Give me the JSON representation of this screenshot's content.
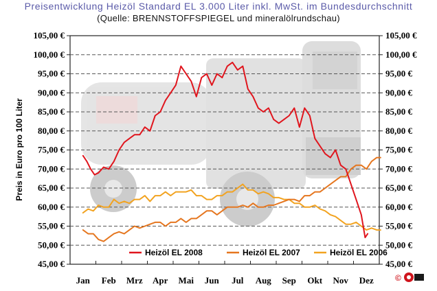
{
  "chart_data": {
    "type": "line",
    "title": "Preisentwicklung Heizöl Standard EL 3.000 Liter inkl. MwSt. im Bundesdurchschnitt",
    "subtitle": "(Quelle: BRENNSTOFFSPIEGEL und mineralölrundschau)",
    "ylabel": "Preis in Euro pro 100 Liter",
    "xlabel": "",
    "ylim": [
      45,
      105
    ],
    "yticks": [
      "45,00 €",
      "50,00 €",
      "55,00 €",
      "60,00 €",
      "65,00 €",
      "70,00 €",
      "75,00 €",
      "80,00 €",
      "85,00 €",
      "90,00 €",
      "95,00 €",
      "100,00 €",
      "105,00 €"
    ],
    "categories": [
      "Jan",
      "Feb",
      "Mrz",
      "Apr",
      "Mai",
      "Jun",
      "Jul",
      "Aug",
      "Sep",
      "Okt",
      "Nov",
      "Dez"
    ],
    "grid": true,
    "legend_position": "bottom",
    "series": [
      {
        "name": "Heizöl EL 2008",
        "color": "#e0151d",
        "x": [
          0,
          0.15,
          0.3,
          0.45,
          0.6,
          0.8,
          1.0,
          1.2,
          1.4,
          1.6,
          1.8,
          2.0,
          2.2,
          2.4,
          2.6,
          2.8,
          3.0,
          3.2,
          3.4,
          3.6,
          3.8,
          4.0,
          4.2,
          4.4,
          4.6,
          4.8,
          5.0,
          5.2,
          5.4,
          5.6,
          5.8,
          6.0,
          6.2,
          6.4,
          6.6,
          6.8,
          7.0,
          7.2,
          7.4,
          7.6,
          7.8,
          8.0,
          8.2,
          8.4,
          8.6,
          8.8,
          9.0,
          9.2,
          9.4,
          9.6,
          9.8,
          10.0,
          10.2,
          10.4,
          10.6,
          10.8,
          10.95,
          11.05
        ],
        "values": [
          73.5,
          72,
          70,
          68.5,
          69,
          70.5,
          70,
          72,
          75,
          77,
          78,
          79,
          79,
          81,
          80,
          84,
          85,
          88,
          90,
          92,
          97,
          95,
          93,
          89,
          94,
          95,
          92,
          95,
          94,
          97,
          98,
          96,
          97,
          91,
          89,
          86,
          85,
          86,
          83,
          82,
          83,
          84,
          86,
          81,
          86,
          84,
          78,
          76,
          74,
          73,
          75,
          71,
          70,
          66,
          62,
          58,
          52,
          53
        ]
      },
      {
        "name": "Heizöl EL 2007",
        "color": "#e5761f",
        "x": [
          0,
          0.2,
          0.4,
          0.6,
          0.8,
          1.0,
          1.2,
          1.4,
          1.6,
          1.8,
          2.0,
          2.2,
          2.4,
          2.6,
          2.8,
          3.0,
          3.2,
          3.4,
          3.6,
          3.8,
          4.0,
          4.2,
          4.4,
          4.6,
          4.8,
          5.0,
          5.2,
          5.4,
          5.6,
          5.8,
          6.0,
          6.2,
          6.4,
          6.6,
          6.8,
          7.0,
          7.2,
          7.4,
          7.6,
          7.8,
          8.0,
          8.2,
          8.4,
          8.6,
          8.8,
          9.0,
          9.2,
          9.4,
          9.6,
          9.8,
          10.0,
          10.2,
          10.4,
          10.6,
          10.8,
          11.0,
          11.2,
          11.4,
          11.55
        ],
        "values": [
          54,
          53,
          53,
          51.5,
          51,
          52,
          53,
          53.5,
          53,
          54,
          55,
          54.5,
          55,
          55.5,
          56,
          56,
          55,
          56,
          56,
          57,
          56,
          57,
          57,
          58,
          59,
          59,
          58,
          59,
          60,
          60,
          60,
          60.5,
          60,
          61,
          60,
          60,
          60.5,
          60.5,
          61,
          61.5,
          62,
          62,
          61.5,
          63,
          63,
          64,
          64,
          65,
          66,
          67,
          68,
          68,
          70,
          71,
          71,
          70,
          72,
          73,
          73
        ]
      },
      {
        "name": "Heizöl EL 2006",
        "color": "#f2a320",
        "x": [
          0,
          0.2,
          0.4,
          0.6,
          0.8,
          1.0,
          1.2,
          1.4,
          1.6,
          1.8,
          2.0,
          2.2,
          2.4,
          2.6,
          2.8,
          3.0,
          3.2,
          3.4,
          3.6,
          3.8,
          4.0,
          4.2,
          4.4,
          4.6,
          4.8,
          5.0,
          5.2,
          5.4,
          5.6,
          5.8,
          6.0,
          6.2,
          6.4,
          6.6,
          6.8,
          7.0,
          7.2,
          7.4,
          7.6,
          7.8,
          8.0,
          8.2,
          8.4,
          8.6,
          8.8,
          9.0,
          9.2,
          9.4,
          9.6,
          9.8,
          10.0,
          10.2,
          10.4,
          10.6,
          10.8,
          11.0,
          11.2,
          11.4,
          11.55
        ],
        "values": [
          58.5,
          59.5,
          59,
          60.5,
          60,
          60,
          62,
          61,
          61.5,
          61,
          62,
          62,
          63,
          61.5,
          63,
          63,
          64,
          63,
          64,
          64,
          64,
          64.5,
          63,
          63,
          62,
          62,
          63,
          63,
          64,
          64,
          65,
          66,
          64.5,
          64.5,
          63.5,
          64,
          63.5,
          62.5,
          62.5,
          62,
          62,
          61,
          61,
          60,
          60,
          60.5,
          59.5,
          59,
          58,
          57.5,
          56.5,
          55.5,
          55.5,
          56,
          55,
          54,
          54.5,
          54,
          54
        ]
      }
    ]
  },
  "copyright": {
    "symbol": "©"
  }
}
